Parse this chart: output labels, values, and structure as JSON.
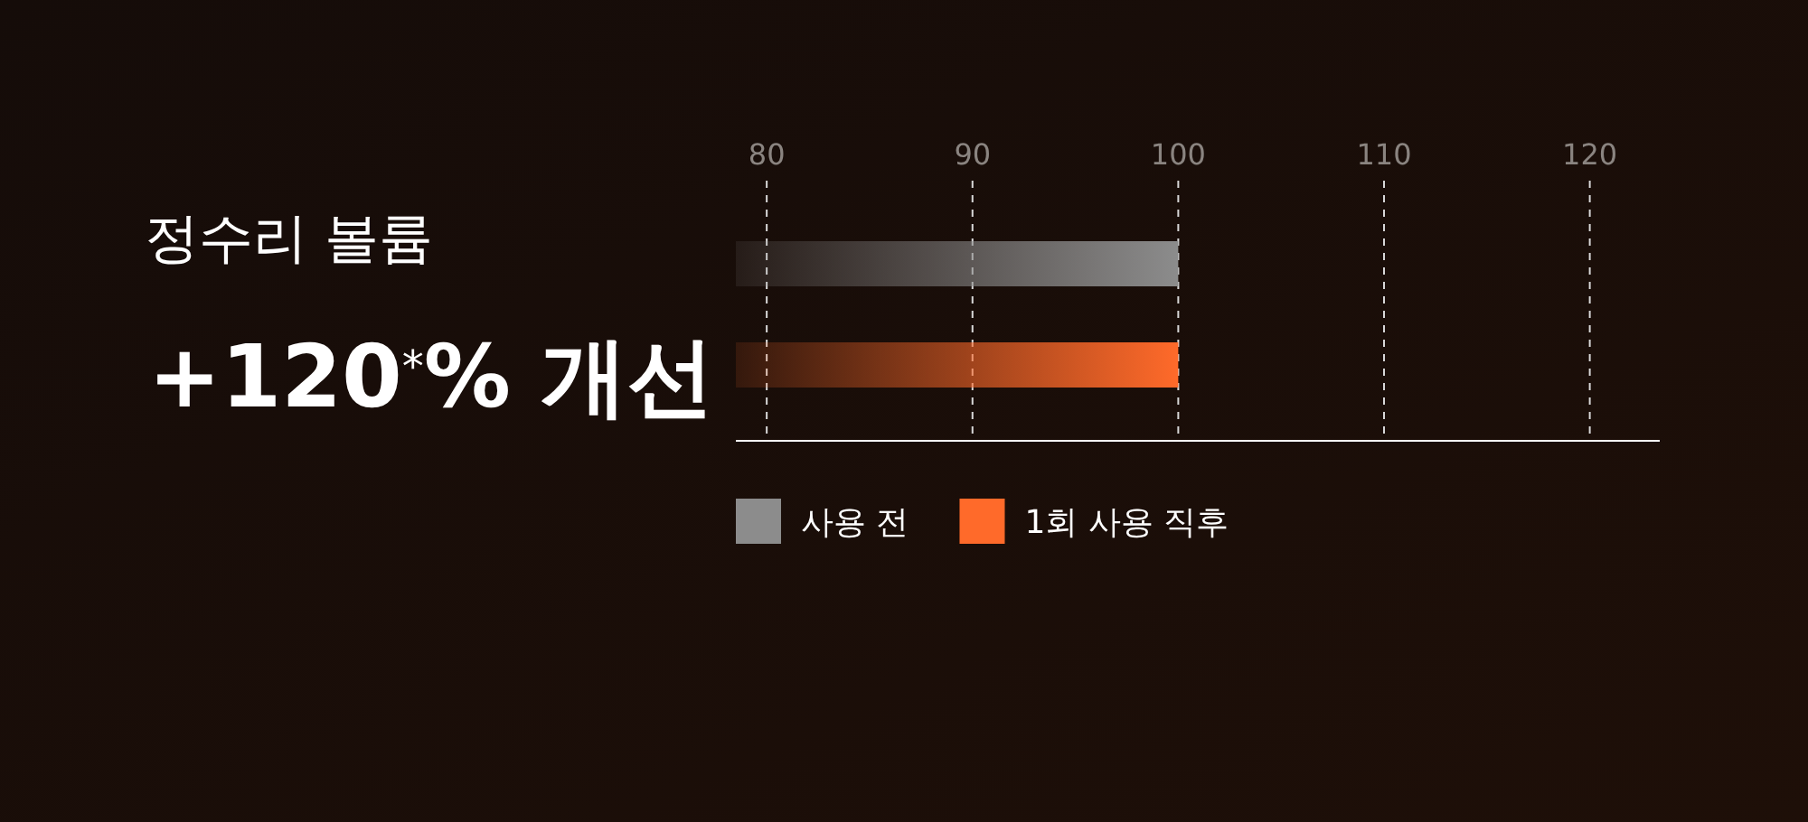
{
  "chart_data": {
    "type": "bar",
    "orientation": "horizontal",
    "title": "정수리 볼륨",
    "subtitle": "+120$^{*}$% 개선",
    "categories": [
      null,
      null
    ],
    "series": [
      {
        "name": "사용 전",
        "color": "#8c8c8c",
        "values": [
          100,
          null
        ]
      },
      {
        "name": "1회 사용 직후",
        "color": "#ff6a2a",
        "values": [
          null,
          100
        ]
      }
    ],
    "xlim": [
      78.5,
      123.4
    ],
    "xticks": [
      80,
      90,
      100,
      110,
      120
    ],
    "grid": "x",
    "legend": "bottom left"
  }
}
